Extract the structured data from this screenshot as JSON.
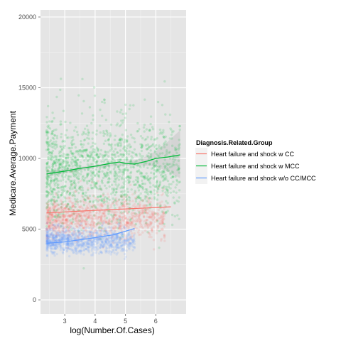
{
  "chart_data": {
    "type": "scatter",
    "title": "",
    "xlabel": "log(Number.Of.Cases)",
    "ylabel": "Medicare.Average.Payment",
    "xlim": [
      2.2,
      7.0
    ],
    "ylim": [
      -1000,
      20500
    ],
    "x_ticks": [
      3,
      4,
      5,
      6
    ],
    "x_tick_labels": [
      "3",
      "4",
      "5",
      "6"
    ],
    "y_ticks": [
      0,
      5000,
      10000,
      15000,
      20000
    ],
    "y_tick_labels": [
      "0",
      "5000",
      "10000",
      "15000",
      "20000"
    ],
    "grid": true,
    "legend": {
      "title": "Diagnosis.Related.Group",
      "placement": "right"
    },
    "series": [
      {
        "name": "Heart failure and shock w CC",
        "color": "#F8766D",
        "point_cloud": {
          "x_range": [
            2.4,
            6.3
          ],
          "center": 5800,
          "spread": 700,
          "count": 1100
        },
        "smooth": {
          "x": [
            2.4,
            3.0,
            3.5,
            4.0,
            4.5,
            5.0,
            5.5,
            6.0,
            6.5
          ],
          "y": [
            6150,
            6220,
            6280,
            6330,
            6380,
            6430,
            6480,
            6530,
            6580
          ]
        }
      },
      {
        "name": "Heart failure and shock w MCC",
        "color": "#00BA38",
        "point_cloud": {
          "x_range": [
            2.4,
            6.8
          ],
          "center": 9200,
          "spread": 1700,
          "count": 1500
        },
        "smooth": {
          "x": [
            2.4,
            3.0,
            3.5,
            4.0,
            4.5,
            4.8,
            5.0,
            5.3,
            5.7,
            6.0,
            6.4,
            6.8
          ],
          "y": [
            8900,
            9100,
            9300,
            9450,
            9650,
            9750,
            9650,
            9600,
            9800,
            10000,
            10100,
            10250
          ]
        },
        "band": {
          "x": [
            2.4,
            3.0,
            4.0,
            5.0,
            5.5,
            6.0,
            6.4,
            6.8
          ],
          "lower": [
            8700,
            8950,
            9350,
            9500,
            9500,
            9450,
            9050,
            8600
          ],
          "upper": [
            9100,
            9250,
            9550,
            9800,
            9950,
            10500,
            11200,
            12000
          ]
        }
      },
      {
        "name": "Heart failure and shock w/o CC/MCC",
        "color": "#619CFF",
        "point_cloud": {
          "x_range": [
            2.4,
            5.3
          ],
          "center": 4150,
          "spread": 450,
          "count": 900
        },
        "smooth": {
          "x": [
            2.4,
            3.0,
            3.5,
            4.0,
            4.3,
            4.6,
            5.0,
            5.3
          ],
          "y": [
            4000,
            4100,
            4250,
            4400,
            4500,
            4600,
            4850,
            5050
          ]
        }
      }
    ]
  }
}
